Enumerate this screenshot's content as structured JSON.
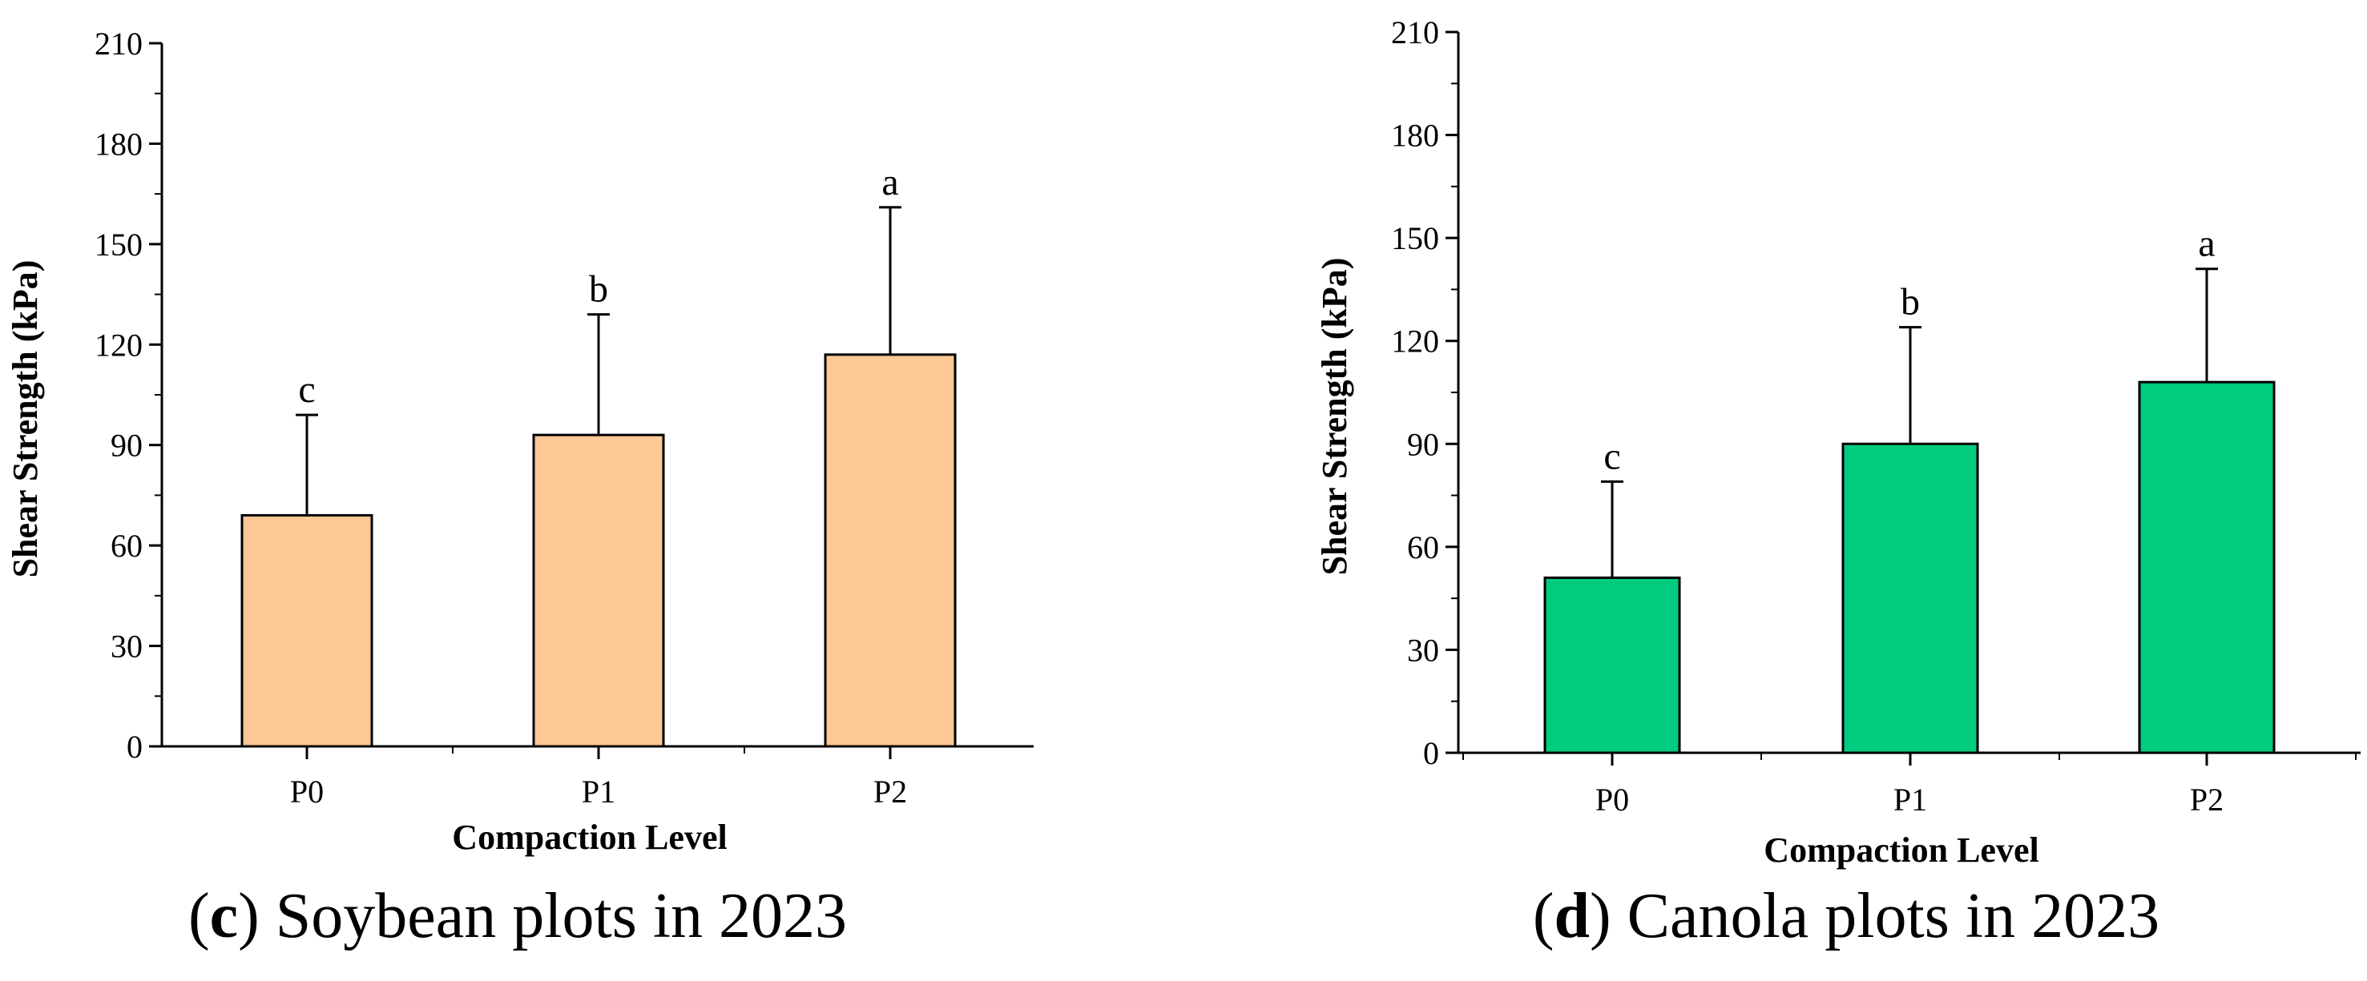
{
  "chart_data": [
    {
      "type": "bar",
      "title": "",
      "xlabel": "Compaction Level",
      "ylabel": "Shear Strength (kPa)",
      "categories": [
        "P0",
        "P1",
        "P2"
      ],
      "values": [
        69,
        93,
        117
      ],
      "error_upper": [
        99,
        129,
        161
      ],
      "significance": [
        "c",
        "b",
        "a"
      ],
      "ylim": [
        0,
        210
      ],
      "yticks": [
        0,
        30,
        60,
        90,
        120,
        150,
        180,
        210
      ],
      "bar_color": "#FEC896",
      "caption_tag": "c",
      "caption_text": " Soybean plots in 2023"
    },
    {
      "type": "bar",
      "title": "",
      "xlabel": "Compaction Level",
      "ylabel": "Shear Strength (kPa)",
      "categories": [
        "P0",
        "P1",
        "P2"
      ],
      "values": [
        51,
        90,
        108
      ],
      "error_upper": [
        79,
        124,
        141
      ],
      "significance": [
        "c",
        "b",
        "a"
      ],
      "ylim": [
        0,
        210
      ],
      "yticks": [
        0,
        30,
        60,
        90,
        120,
        150,
        180,
        210
      ],
      "bar_color": "#00CC7F",
      "caption_tag": "d",
      "caption_text": " Canola plots in 2023"
    }
  ]
}
